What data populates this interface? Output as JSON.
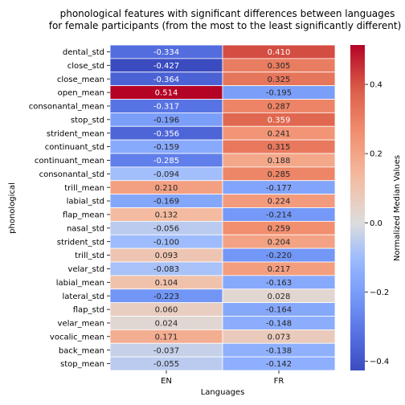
{
  "chart_data": {
    "type": "heatmap",
    "title_lines": [
      "phonological features with significant differences between languages",
      "for female participants (from the most to the least significantly different)"
    ],
    "xlabel": "Languages",
    "ylabel": "phonological",
    "columns": [
      "EN",
      "FR"
    ],
    "rows": [
      {
        "label": "dental_std",
        "values": [
          -0.334,
          0.41
        ]
      },
      {
        "label": "close_std",
        "values": [
          -0.427,
          0.305
        ]
      },
      {
        "label": "close_mean",
        "values": [
          -0.364,
          0.325
        ]
      },
      {
        "label": "open_mean",
        "values": [
          0.514,
          -0.195
        ]
      },
      {
        "label": "consonantal_mean",
        "values": [
          -0.317,
          0.287
        ]
      },
      {
        "label": "stop_std",
        "values": [
          -0.196,
          0.359
        ]
      },
      {
        "label": "strident_mean",
        "values": [
          -0.356,
          0.241
        ]
      },
      {
        "label": "continuant_std",
        "values": [
          -0.159,
          0.315
        ]
      },
      {
        "label": "continuant_mean",
        "values": [
          -0.285,
          0.188
        ]
      },
      {
        "label": "consonantal_std",
        "values": [
          -0.094,
          0.285
        ]
      },
      {
        "label": "trill_mean",
        "values": [
          0.21,
          -0.177
        ]
      },
      {
        "label": "labial_std",
        "values": [
          -0.169,
          0.224
        ]
      },
      {
        "label": "flap_mean",
        "values": [
          0.132,
          -0.214
        ]
      },
      {
        "label": "nasal_std",
        "values": [
          -0.056,
          0.259
        ]
      },
      {
        "label": "strident_std",
        "values": [
          -0.1,
          0.204
        ]
      },
      {
        "label": "trill_std",
        "values": [
          0.093,
          -0.22
        ]
      },
      {
        "label": "velar_std",
        "values": [
          -0.083,
          0.217
        ]
      },
      {
        "label": "labial_mean",
        "values": [
          0.104,
          -0.163
        ]
      },
      {
        "label": "lateral_std",
        "values": [
          -0.223,
          0.028
        ]
      },
      {
        "label": "flap_std",
        "values": [
          0.06,
          -0.164
        ]
      },
      {
        "label": "velar_mean",
        "values": [
          0.024,
          -0.148
        ]
      },
      {
        "label": "vocalic_mean",
        "values": [
          0.171,
          0.073
        ]
      },
      {
        "label": "back_mean",
        "values": [
          -0.037,
          -0.138
        ]
      },
      {
        "label": "stop_mean",
        "values": [
          -0.055,
          -0.142
        ]
      }
    ],
    "colorbar": {
      "label": "Normalized Median Values",
      "vmin": -0.427,
      "vmax": 0.514,
      "ticks": [
        -0.4,
        -0.2,
        0.0,
        0.2,
        0.4
      ],
      "tick_labels": [
        "−0.4",
        "−0.2",
        "0.0",
        "0.2",
        "0.4"
      ],
      "colormap": "coolwarm"
    }
  }
}
